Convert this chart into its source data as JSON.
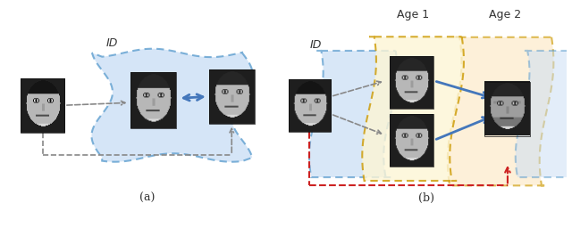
{
  "fig_width": 6.4,
  "fig_height": 2.56,
  "dpi": 100,
  "bg_color": "#ffffff",
  "label_a": "(a)",
  "label_b": "(b)",
  "label_ID_a": "ID",
  "label_ID_b": "ID",
  "label_age1": "Age 1",
  "label_age2": "Age 2",
  "blue_fill": "#c8ddf5",
  "yellow_fill": "#fdf5d5",
  "orange_fill": "#fde8c5",
  "blue_dot_color": "#5599cc",
  "yellow_dot_color": "#cc9900",
  "arrow_blue": "#4477bb",
  "arrow_gray": "#888888",
  "arrow_red": "#cc2222",
  "font_size_label": 9,
  "font_size_sub": 9,
  "font_size_id": 9
}
